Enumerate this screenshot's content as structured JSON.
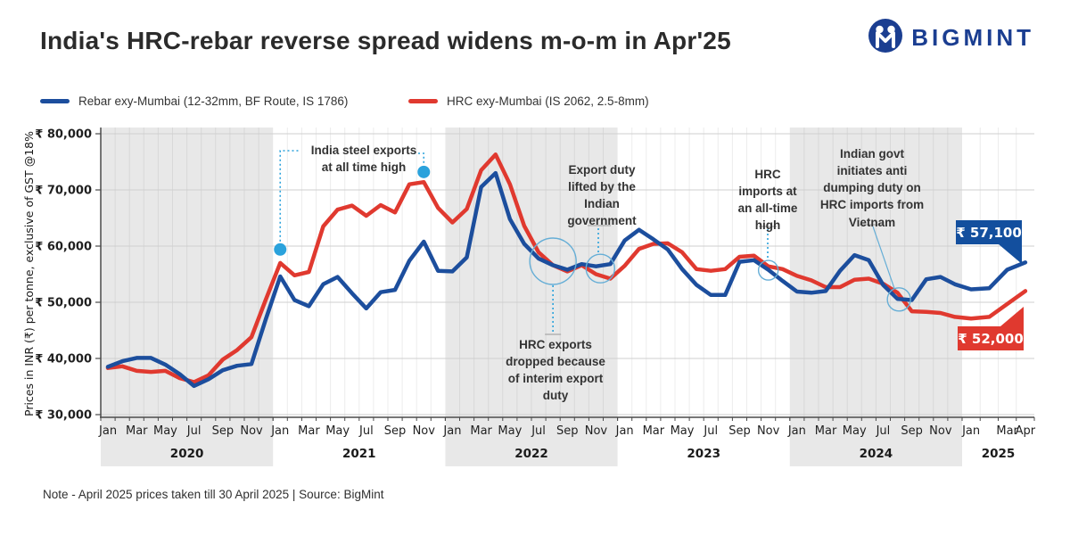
{
  "header": {
    "title": "India's HRC-rebar reverse spread widens m-o-m in Apr'25",
    "brand": "BIGMINT"
  },
  "legend": [
    {
      "label": "Rebar exy-Mumbai (12-32mm, BF Route, IS 1786)",
      "color": "#1c4e9d"
    },
    {
      "label": "HRC exy-Mumbai (IS 2062, 2.5-8mm)",
      "color": "#e0392f"
    }
  ],
  "note": "Note - April 2025 prices taken till  30 April 2025 | Source: BigMint",
  "chart_data": {
    "type": "line",
    "y_axis": {
      "label": "Prices in INR (₹) per tonne, exclusive of GST @18%",
      "tick_values": [
        30000,
        40000,
        50000,
        60000,
        70000,
        80000
      ],
      "tick_labels": [
        "₹ 30,000",
        "₹ 40,000",
        "₹ 50,000",
        "₹ 60,000",
        "₹ 70,000",
        "₹ 80,000"
      ],
      "ylim": [
        30000,
        80000
      ]
    },
    "x_axis": {
      "years": [
        {
          "label": "2020",
          "n_months": 12,
          "tick_labels": [
            "Jan",
            "Mar",
            "May",
            "Jul",
            "Sep",
            "Nov"
          ],
          "tick_indices": [
            0,
            2,
            4,
            6,
            8,
            10
          ]
        },
        {
          "label": "2021",
          "n_months": 12,
          "tick_labels": [
            "Jan",
            "Mar",
            "May",
            "Jul",
            "Sep",
            "Nov"
          ],
          "tick_indices": [
            0,
            2,
            4,
            6,
            8,
            10
          ]
        },
        {
          "label": "2022",
          "n_months": 12,
          "tick_labels": [
            "Jan",
            "Mar",
            "May",
            "Jul",
            "Sep",
            "Nov"
          ],
          "tick_indices": [
            0,
            2,
            4,
            6,
            8,
            10
          ]
        },
        {
          "label": "2023",
          "n_months": 12,
          "tick_labels": [
            "Jan",
            "Mar",
            "May",
            "Jul",
            "Sep",
            "Nov"
          ],
          "tick_indices": [
            0,
            2,
            4,
            6,
            8,
            10
          ]
        },
        {
          "label": "2024",
          "n_months": 12,
          "tick_labels": [
            "Jan",
            "Mar",
            "May",
            "Jul",
            "Sep",
            "Nov"
          ],
          "tick_indices": [
            0,
            2,
            4,
            6,
            8,
            10
          ]
        },
        {
          "label": "2025",
          "n_months": 4,
          "tick_labels": [
            "Jan",
            "Mar",
            "Apr"
          ],
          "tick_indices": [
            0,
            2,
            3
          ]
        }
      ]
    },
    "series": [
      {
        "name": "HRC exy-Mumbai",
        "color": "#e0392f",
        "values": [
          38300,
          38600,
          37800,
          37600,
          37800,
          36500,
          35800,
          37000,
          39800,
          41500,
          43800,
          50500,
          57000,
          54800,
          55400,
          63500,
          66500,
          67200,
          65400,
          67300,
          66000,
          71000,
          71400,
          66800,
          64200,
          66600,
          73500,
          76300,
          71000,
          63600,
          58900,
          56600,
          55500,
          56600,
          55000,
          54200,
          56500,
          59500,
          60400,
          60500,
          58900,
          55900,
          55600,
          55900,
          58100,
          58300,
          56400,
          55900,
          54700,
          53900,
          52700,
          52700,
          54000,
          54200,
          53300,
          51700,
          48400,
          48300,
          48100,
          47400,
          47100,
          47400,
          49700,
          52000
        ]
      },
      {
        "name": "Rebar exy-Mumbai",
        "color": "#1c4e9d",
        "values": [
          38500,
          39500,
          40100,
          40100,
          38900,
          37200,
          35100,
          36300,
          37900,
          38700,
          39000,
          47000,
          54600,
          50400,
          49300,
          53200,
          54500,
          51600,
          48900,
          51800,
          52200,
          57400,
          60800,
          55600,
          55500,
          58000,
          70500,
          73000,
          64800,
          60400,
          57800,
          56600,
          55800,
          56800,
          56400,
          56800,
          61000,
          62900,
          61200,
          59400,
          55900,
          53100,
          51300,
          51300,
          57200,
          57500,
          55800,
          53800,
          51900,
          51700,
          52000,
          55600,
          58400,
          57500,
          53100,
          50600,
          50400,
          54100,
          54500,
          53200,
          52300,
          52500,
          55800,
          57100
        ]
      }
    ],
    "end_labels": [
      {
        "text": "₹ 57,100",
        "color": "#134f9e"
      },
      {
        "text": "₹ 52,000",
        "color": "#e0392f"
      }
    ],
    "annotations": [
      {
        "id": "steel-exports",
        "text": "India steel exports\nat all time high",
        "markers": [
          {
            "xi": 12,
            "value": 59400
          },
          {
            "xi": 22,
            "value": 73200
          }
        ]
      },
      {
        "id": "export-duty",
        "text": "Export duty\nlifted by the\nIndian\ngovernment",
        "circle": {
          "xi": 34.3,
          "value": 56000,
          "r": 16
        }
      },
      {
        "id": "hrc-exports-dropped",
        "text": "HRC exports\ndropped because\nof interim export\nduty",
        "circle": {
          "xi": 31,
          "value": 57300,
          "r": 26
        }
      },
      {
        "id": "hrc-imports",
        "text": "HRC\nimports at\nan all-time\nhigh",
        "circle": {
          "xi": 46,
          "value": 55700,
          "r": 11
        }
      },
      {
        "id": "anti-dumping",
        "text": "Indian govt\ninitiates anti\ndumping duty on\nHRC imports from\nVietnam",
        "circle": {
          "xi": 55.1,
          "value": 50500,
          "r": 13
        }
      }
    ],
    "colors": {
      "band_gray": "#e8e8e8",
      "grid_h": "#cfcfcf",
      "grid_v_gray": "#d8d8d8",
      "grid_v_white": "#ececec",
      "axis": "#4a4a4a",
      "marker_dot": "#2aa2dc",
      "callout_circle": "#66aed6",
      "tick_text": "#1f1f1f"
    }
  }
}
